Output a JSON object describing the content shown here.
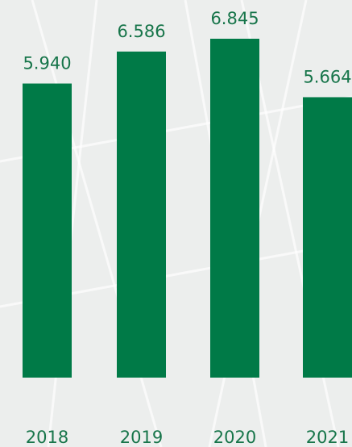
{
  "chart_data": {
    "type": "bar",
    "categories": [
      "2018",
      "2019",
      "2020",
      "2021"
    ],
    "values": [
      5.94,
      6.586,
      6.845,
      5.664
    ],
    "value_labels": [
      "5.940",
      "6.586",
      "6.845",
      "5.664"
    ],
    "color": "#007a47"
  }
}
